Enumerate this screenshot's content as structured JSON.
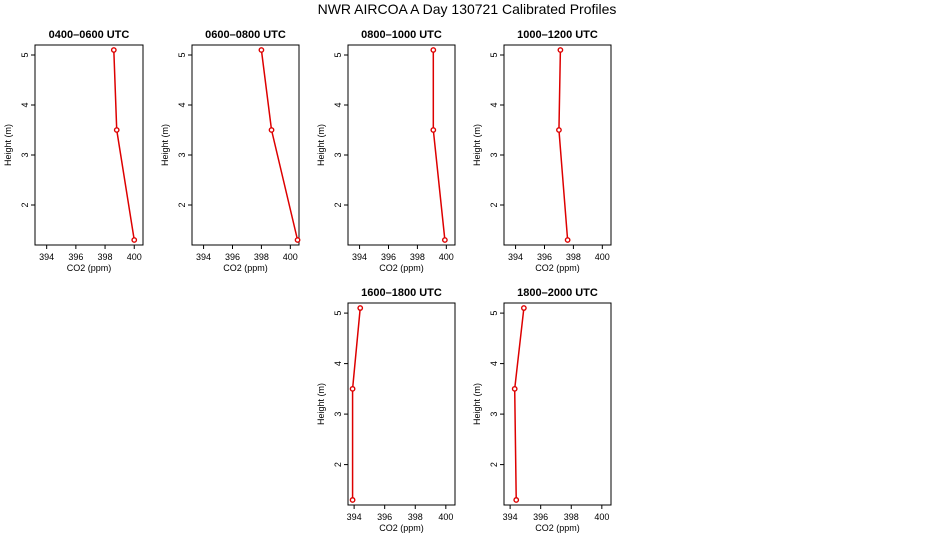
{
  "figure_title": "NWR AIRCOA A  Day 130721  Calibrated Profiles",
  "colors": {
    "series": "#dd0000",
    "axis": "#000000"
  },
  "chart_data": [
    {
      "type": "line",
      "title": "0400–0600 UTC",
      "xlabel": "CO2 (ppm)",
      "ylabel": "Height (m)",
      "xlim": [
        393.2,
        400.6
      ],
      "ylim": [
        1.2,
        5.2
      ],
      "xticks": [
        394,
        396,
        398,
        400
      ],
      "xtick_labels": [
        "394",
        "396",
        "398",
        "400"
      ],
      "yticks": [
        2,
        3,
        4,
        5
      ],
      "ytick_labels": [
        "2",
        "3",
        "4",
        "5"
      ],
      "x": [
        398.6,
        398.8,
        400.0
      ],
      "y": [
        5.1,
        3.5,
        1.3
      ]
    },
    {
      "type": "line",
      "title": "0600–0800 UTC",
      "xlabel": "CO2 (ppm)",
      "ylabel": "Height (m)",
      "xlim": [
        393.2,
        400.6
      ],
      "ylim": [
        1.2,
        5.2
      ],
      "xticks": [
        394,
        396,
        398,
        400
      ],
      "xtick_labels": [
        "394",
        "396",
        "398",
        "400"
      ],
      "yticks": [
        2,
        3,
        4,
        5
      ],
      "ytick_labels": [
        "2",
        "3",
        "4",
        "5"
      ],
      "x": [
        398.0,
        398.7,
        400.5
      ],
      "y": [
        5.1,
        3.5,
        1.3
      ]
    },
    {
      "type": "line",
      "title": "0800–1000 UTC",
      "xlabel": "CO2 (ppm)",
      "ylabel": "Height (m)",
      "xlim": [
        393.2,
        400.6
      ],
      "ylim": [
        1.2,
        5.2
      ],
      "xticks": [
        394,
        396,
        398,
        400
      ],
      "xtick_labels": [
        "394",
        "396",
        "398",
        "400"
      ],
      "yticks": [
        2,
        3,
        4,
        5
      ],
      "ytick_labels": [
        "2",
        "3",
        "4",
        "5"
      ],
      "x": [
        399.1,
        399.1,
        399.9
      ],
      "y": [
        5.1,
        3.5,
        1.3
      ]
    },
    {
      "type": "line",
      "title": "1000–1200 UTC",
      "xlabel": "CO2 (ppm)",
      "ylabel": "Height (m)",
      "xlim": [
        393.2,
        400.6
      ],
      "ylim": [
        1.2,
        5.2
      ],
      "xticks": [
        394,
        396,
        398,
        400
      ],
      "xtick_labels": [
        "394",
        "396",
        "398",
        "400"
      ],
      "yticks": [
        2,
        3,
        4,
        5
      ],
      "ytick_labels": [
        "2",
        "3",
        "4",
        "5"
      ],
      "x": [
        397.1,
        397.0,
        397.6
      ],
      "y": [
        5.1,
        3.5,
        1.3
      ]
    },
    {
      "type": "line",
      "title": "1600–1800 UTC",
      "xlabel": "CO2 (ppm)",
      "ylabel": "Height (m)",
      "xlim": [
        393.6,
        400.6
      ],
      "ylim": [
        1.2,
        5.2
      ],
      "xticks": [
        394,
        396,
        398,
        400
      ],
      "xtick_labels": [
        "394",
        "396",
        "398",
        "400"
      ],
      "yticks": [
        2,
        3,
        4,
        5
      ],
      "ytick_labels": [
        "2",
        "3",
        "4",
        "5"
      ],
      "x": [
        394.4,
        393.9,
        393.9
      ],
      "y": [
        5.1,
        3.5,
        1.3
      ]
    },
    {
      "type": "line",
      "title": "1800–2000 UTC",
      "xlabel": "CO2 (ppm)",
      "ylabel": "Height (m)",
      "xlim": [
        393.6,
        400.6
      ],
      "ylim": [
        1.2,
        5.2
      ],
      "xticks": [
        394,
        396,
        398,
        400
      ],
      "xtick_labels": [
        "394",
        "396",
        "398",
        "400"
      ],
      "yticks": [
        2,
        3,
        4,
        5
      ],
      "ytick_labels": [
        "2",
        "3",
        "4",
        "5"
      ],
      "x": [
        394.9,
        394.3,
        394.4
      ],
      "y": [
        5.1,
        3.5,
        1.3
      ]
    }
  ]
}
